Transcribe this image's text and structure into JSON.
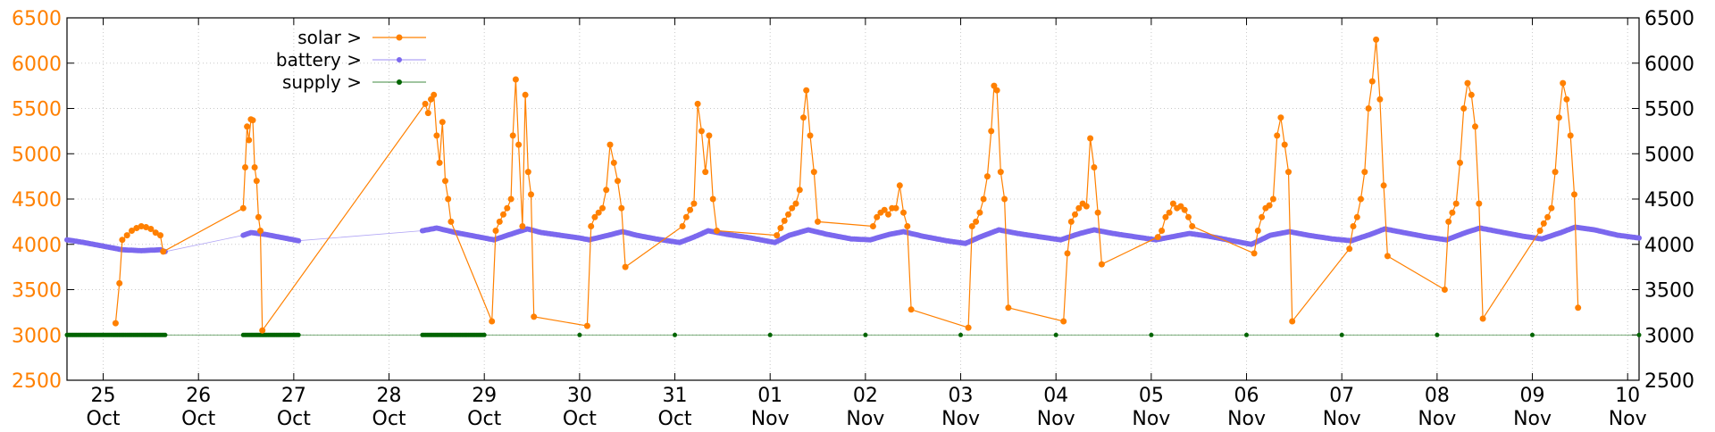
{
  "chart_data": {
    "type": "line",
    "title": "",
    "xlabel": "",
    "ylabel": "",
    "ylim": [
      2500,
      6500
    ],
    "y_ticks": [
      2500,
      3000,
      3500,
      4000,
      4500,
      5000,
      5500,
      6000,
      6500
    ],
    "x_range": [
      24.62,
      41.12
    ],
    "x_ticks": [
      {
        "x": 25,
        "day": "25",
        "month": "Oct"
      },
      {
        "x": 26,
        "day": "26",
        "month": "Oct"
      },
      {
        "x": 27,
        "day": "27",
        "month": "Oct"
      },
      {
        "x": 28,
        "day": "28",
        "month": "Oct"
      },
      {
        "x": 29,
        "day": "29",
        "month": "Oct"
      },
      {
        "x": 30,
        "day": "30",
        "month": "Oct"
      },
      {
        "x": 31,
        "day": "31",
        "month": "Oct"
      },
      {
        "x": 32,
        "day": "01",
        "month": "Nov"
      },
      {
        "x": 33,
        "day": "02",
        "month": "Nov"
      },
      {
        "x": 34,
        "day": "03",
        "month": "Nov"
      },
      {
        "x": 35,
        "day": "04",
        "month": "Nov"
      },
      {
        "x": 36,
        "day": "05",
        "month": "Nov"
      },
      {
        "x": 37,
        "day": "06",
        "month": "Nov"
      },
      {
        "x": 38,
        "day": "07",
        "month": "Nov"
      },
      {
        "x": 39,
        "day": "08",
        "month": "Nov"
      },
      {
        "x": 40,
        "day": "09",
        "month": "Nov"
      },
      {
        "x": 41,
        "day": "10",
        "month": "Nov"
      }
    ],
    "grid": true,
    "legend_position": "top-left",
    "series": [
      {
        "name": "solar >",
        "legend_label": "solar >",
        "color": "#ff8000",
        "style": "line+points",
        "points": [
          [
            25.13,
            3130
          ],
          [
            25.17,
            3570
          ],
          [
            25.2,
            4050
          ],
          [
            25.25,
            4100
          ],
          [
            25.3,
            4150
          ],
          [
            25.35,
            4180
          ],
          [
            25.4,
            4200
          ],
          [
            25.45,
            4190
          ],
          [
            25.5,
            4170
          ],
          [
            25.55,
            4130
          ],
          [
            25.6,
            4100
          ],
          [
            25.63,
            3920
          ],
          [
            26.47,
            4400
          ],
          [
            26.49,
            4850
          ],
          [
            26.51,
            5300
          ],
          [
            26.53,
            5150
          ],
          [
            26.55,
            5380
          ],
          [
            26.57,
            5370
          ],
          [
            26.59,
            4850
          ],
          [
            26.61,
            4700
          ],
          [
            26.63,
            4300
          ],
          [
            26.65,
            4150
          ],
          [
            26.67,
            3050
          ],
          [
            28.38,
            5550
          ],
          [
            28.41,
            5450
          ],
          [
            28.44,
            5600
          ],
          [
            28.47,
            5650
          ],
          [
            28.5,
            5200
          ],
          [
            28.53,
            4900
          ],
          [
            28.56,
            5350
          ],
          [
            28.59,
            4700
          ],
          [
            28.62,
            4500
          ],
          [
            28.65,
            4250
          ],
          [
            29.08,
            3150
          ],
          [
            29.12,
            4150
          ],
          [
            29.16,
            4250
          ],
          [
            29.2,
            4330
          ],
          [
            29.24,
            4400
          ],
          [
            29.28,
            4500
          ],
          [
            29.3,
            5200
          ],
          [
            29.33,
            5820
          ],
          [
            29.36,
            5100
          ],
          [
            29.4,
            4200
          ],
          [
            29.43,
            5650
          ],
          [
            29.46,
            4800
          ],
          [
            29.49,
            4550
          ],
          [
            29.52,
            3200
          ],
          [
            30.08,
            3100
          ],
          [
            30.12,
            4200
          ],
          [
            30.16,
            4300
          ],
          [
            30.2,
            4350
          ],
          [
            30.24,
            4400
          ],
          [
            30.28,
            4600
          ],
          [
            30.32,
            5100
          ],
          [
            30.36,
            4900
          ],
          [
            30.4,
            4700
          ],
          [
            30.44,
            4400
          ],
          [
            30.48,
            3750
          ],
          [
            31.08,
            4200
          ],
          [
            31.12,
            4300
          ],
          [
            31.16,
            4380
          ],
          [
            31.2,
            4450
          ],
          [
            31.24,
            5550
          ],
          [
            31.28,
            5250
          ],
          [
            31.32,
            4800
          ],
          [
            31.36,
            5200
          ],
          [
            31.4,
            4500
          ],
          [
            31.44,
            4150
          ],
          [
            32.07,
            4100
          ],
          [
            32.11,
            4180
          ],
          [
            32.15,
            4260
          ],
          [
            32.19,
            4330
          ],
          [
            32.23,
            4400
          ],
          [
            32.27,
            4450
          ],
          [
            32.31,
            4600
          ],
          [
            32.35,
            5400
          ],
          [
            32.38,
            5700
          ],
          [
            32.42,
            5200
          ],
          [
            32.46,
            4800
          ],
          [
            32.5,
            4250
          ],
          [
            33.08,
            4200
          ],
          [
            33.12,
            4300
          ],
          [
            33.16,
            4350
          ],
          [
            33.2,
            4380
          ],
          [
            33.24,
            4330
          ],
          [
            33.28,
            4400
          ],
          [
            33.32,
            4400
          ],
          [
            33.36,
            4650
          ],
          [
            33.4,
            4350
          ],
          [
            33.44,
            4200
          ],
          [
            33.48,
            3280
          ],
          [
            34.08,
            3080
          ],
          [
            34.12,
            4200
          ],
          [
            34.16,
            4250
          ],
          [
            34.2,
            4350
          ],
          [
            34.24,
            4500
          ],
          [
            34.28,
            4750
          ],
          [
            34.32,
            5250
          ],
          [
            34.35,
            5750
          ],
          [
            34.38,
            5700
          ],
          [
            34.42,
            4800
          ],
          [
            34.46,
            4500
          ],
          [
            34.5,
            3300
          ],
          [
            35.08,
            3150
          ],
          [
            35.12,
            3900
          ],
          [
            35.16,
            4250
          ],
          [
            35.2,
            4330
          ],
          [
            35.24,
            4400
          ],
          [
            35.28,
            4450
          ],
          [
            35.32,
            4420
          ],
          [
            35.36,
            5170
          ],
          [
            35.4,
            4850
          ],
          [
            35.44,
            4350
          ],
          [
            35.48,
            3780
          ],
          [
            36.07,
            4080
          ],
          [
            36.11,
            4150
          ],
          [
            36.15,
            4300
          ],
          [
            36.19,
            4350
          ],
          [
            36.23,
            4450
          ],
          [
            36.27,
            4400
          ],
          [
            36.31,
            4420
          ],
          [
            36.35,
            4380
          ],
          [
            36.39,
            4300
          ],
          [
            36.43,
            4200
          ],
          [
            37.08,
            3900
          ],
          [
            37.12,
            4150
          ],
          [
            37.16,
            4300
          ],
          [
            37.2,
            4400
          ],
          [
            37.24,
            4430
          ],
          [
            37.28,
            4500
          ],
          [
            37.32,
            5200
          ],
          [
            37.36,
            5400
          ],
          [
            37.4,
            5100
          ],
          [
            37.44,
            4800
          ],
          [
            37.48,
            3150
          ],
          [
            38.08,
            3950
          ],
          [
            38.12,
            4200
          ],
          [
            38.16,
            4300
          ],
          [
            38.2,
            4500
          ],
          [
            38.24,
            4800
          ],
          [
            38.28,
            5500
          ],
          [
            38.32,
            5800
          ],
          [
            38.36,
            6260
          ],
          [
            38.4,
            5600
          ],
          [
            38.44,
            4650
          ],
          [
            38.48,
            3870
          ],
          [
            39.08,
            3500
          ],
          [
            39.12,
            4250
          ],
          [
            39.16,
            4350
          ],
          [
            39.2,
            4450
          ],
          [
            39.24,
            4900
          ],
          [
            39.28,
            5500
          ],
          [
            39.32,
            5780
          ],
          [
            39.36,
            5650
          ],
          [
            39.4,
            5300
          ],
          [
            39.44,
            4450
          ],
          [
            39.48,
            3180
          ],
          [
            40.08,
            4150
          ],
          [
            40.12,
            4230
          ],
          [
            40.16,
            4300
          ],
          [
            40.2,
            4400
          ],
          [
            40.24,
            4800
          ],
          [
            40.28,
            5400
          ],
          [
            40.32,
            5780
          ],
          [
            40.36,
            5600
          ],
          [
            40.4,
            5200
          ],
          [
            40.44,
            4550
          ],
          [
            40.48,
            3300
          ]
        ]
      },
      {
        "name": "battery >",
        "legend_label": "battery >",
        "color": "#7b68ee",
        "style": "line+points",
        "points": [
          [
            24.62,
            4050
          ],
          [
            24.8,
            4020
          ],
          [
            25.0,
            3980
          ],
          [
            25.2,
            3940
          ],
          [
            25.4,
            3930
          ],
          [
            25.6,
            3940
          ],
          [
            25.65,
            3920
          ],
          [
            26.47,
            4100
          ],
          [
            26.55,
            4130
          ],
          [
            26.7,
            4110
          ],
          [
            26.9,
            4070
          ],
          [
            27.05,
            4040
          ],
          [
            28.35,
            4150
          ],
          [
            28.5,
            4180
          ],
          [
            28.7,
            4130
          ],
          [
            28.9,
            4090
          ],
          [
            29.1,
            4050
          ],
          [
            29.3,
            4120
          ],
          [
            29.45,
            4170
          ],
          [
            29.6,
            4130
          ],
          [
            29.8,
            4100
          ],
          [
            30.0,
            4070
          ],
          [
            30.1,
            4050
          ],
          [
            30.3,
            4100
          ],
          [
            30.45,
            4140
          ],
          [
            30.6,
            4100
          ],
          [
            30.8,
            4060
          ],
          [
            31.05,
            4020
          ],
          [
            31.2,
            4080
          ],
          [
            31.35,
            4150
          ],
          [
            31.55,
            4110
          ],
          [
            31.8,
            4070
          ],
          [
            32.05,
            4020
          ],
          [
            32.2,
            4100
          ],
          [
            32.4,
            4160
          ],
          [
            32.6,
            4110
          ],
          [
            32.85,
            4060
          ],
          [
            33.05,
            4050
          ],
          [
            33.25,
            4110
          ],
          [
            33.4,
            4140
          ],
          [
            33.6,
            4090
          ],
          [
            33.85,
            4040
          ],
          [
            34.05,
            4010
          ],
          [
            34.2,
            4080
          ],
          [
            34.4,
            4160
          ],
          [
            34.6,
            4120
          ],
          [
            34.85,
            4080
          ],
          [
            35.05,
            4050
          ],
          [
            35.25,
            4120
          ],
          [
            35.4,
            4160
          ],
          [
            35.6,
            4120
          ],
          [
            35.85,
            4080
          ],
          [
            36.05,
            4050
          ],
          [
            36.25,
            4090
          ],
          [
            36.4,
            4120
          ],
          [
            36.6,
            4090
          ],
          [
            36.85,
            4040
          ],
          [
            37.05,
            4000
          ],
          [
            37.25,
            4100
          ],
          [
            37.45,
            4140
          ],
          [
            37.65,
            4100
          ],
          [
            37.9,
            4060
          ],
          [
            38.1,
            4040
          ],
          [
            38.3,
            4110
          ],
          [
            38.45,
            4170
          ],
          [
            38.65,
            4130
          ],
          [
            38.9,
            4080
          ],
          [
            39.1,
            4050
          ],
          [
            39.3,
            4130
          ],
          [
            39.45,
            4180
          ],
          [
            39.65,
            4140
          ],
          [
            39.9,
            4090
          ],
          [
            40.1,
            4060
          ],
          [
            40.3,
            4130
          ],
          [
            40.45,
            4190
          ],
          [
            40.65,
            4160
          ],
          [
            40.9,
            4100
          ],
          [
            41.12,
            4070
          ]
        ]
      },
      {
        "name": "supply >",
        "legend_label": "supply >",
        "color": "#006400",
        "style": "line+points",
        "points": [
          [
            24.62,
            3000
          ],
          [
            24.9,
            3000
          ],
          [
            25.2,
            3000
          ],
          [
            25.5,
            3000
          ],
          [
            25.65,
            3000
          ],
          [
            26.47,
            3000
          ],
          [
            26.7,
            3000
          ],
          [
            26.9,
            3000
          ],
          [
            27.05,
            3000
          ],
          [
            28.35,
            3000
          ],
          [
            29.0,
            3000
          ],
          [
            30.0,
            3000
          ],
          [
            31.0,
            3000
          ],
          [
            32.0,
            3000
          ],
          [
            33.0,
            3000
          ],
          [
            34.0,
            3000
          ],
          [
            35.0,
            3000
          ],
          [
            36.0,
            3000
          ],
          [
            37.0,
            3000
          ],
          [
            38.0,
            3000
          ],
          [
            39.0,
            3000
          ],
          [
            40.0,
            3000
          ],
          [
            41.12,
            3000
          ]
        ]
      }
    ]
  }
}
